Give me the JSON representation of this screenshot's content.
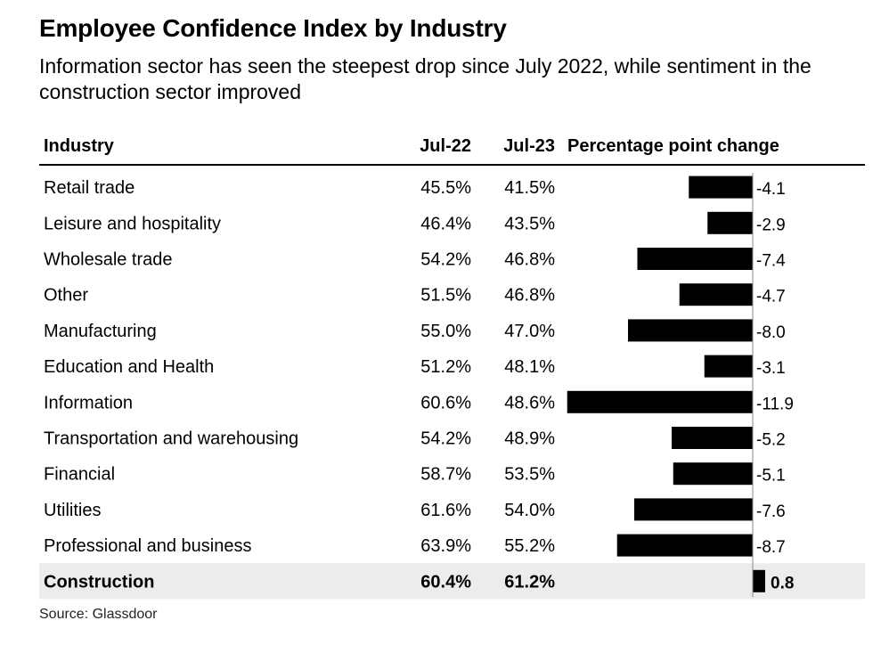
{
  "title": "Employee Confidence Index by Industry",
  "subtitle": "Information sector has seen the steepest drop since July 2022, while sentiment in the construction sector improved",
  "source": "Source: Glassdoor",
  "chart_data": {
    "type": "table",
    "columns": [
      "Industry",
      "Jul-22",
      "Jul-23",
      "Percentage point change"
    ],
    "rows": [
      {
        "industry": "Retail trade",
        "jul22": "45.5%",
        "jul23": "41.5%",
        "change": -4.1,
        "change_label": "-4.1"
      },
      {
        "industry": "Leisure and hospitality",
        "jul22": "46.4%",
        "jul23": "43.5%",
        "change": -2.9,
        "change_label": "-2.9"
      },
      {
        "industry": "Wholesale trade",
        "jul22": "54.2%",
        "jul23": "46.8%",
        "change": -7.4,
        "change_label": "-7.4"
      },
      {
        "industry": "Other",
        "jul22": "51.5%",
        "jul23": "46.8%",
        "change": -4.7,
        "change_label": "-4.7"
      },
      {
        "industry": "Manufacturing",
        "jul22": "55.0%",
        "jul23": "47.0%",
        "change": -8.0,
        "change_label": "-8.0"
      },
      {
        "industry": "Education and Health",
        "jul22": "51.2%",
        "jul23": "48.1%",
        "change": -3.1,
        "change_label": "-3.1"
      },
      {
        "industry": "Information",
        "jul22": "60.6%",
        "jul23": "48.6%",
        "change": -11.9,
        "change_label": "-11.9"
      },
      {
        "industry": "Transportation and warehousing",
        "jul22": "54.2%",
        "jul23": "48.9%",
        "change": -5.2,
        "change_label": "-5.2"
      },
      {
        "industry": "Financial",
        "jul22": "58.7%",
        "jul23": "53.5%",
        "change": -5.1,
        "change_label": "-5.1"
      },
      {
        "industry": "Utilities",
        "jul22": "61.6%",
        "jul23": "54.0%",
        "change": -7.6,
        "change_label": "-7.6"
      },
      {
        "industry": "Professional and business",
        "jul22": "63.9%",
        "jul23": "55.2%",
        "change": -8.7,
        "change_label": "-8.7"
      },
      {
        "industry": "Construction",
        "jul22": "60.4%",
        "jul23": "61.2%",
        "change": 0.8,
        "change_label": "0.8",
        "highlight": true
      }
    ],
    "bar_color": "#000000",
    "highlight_row_color": "#ececec"
  }
}
